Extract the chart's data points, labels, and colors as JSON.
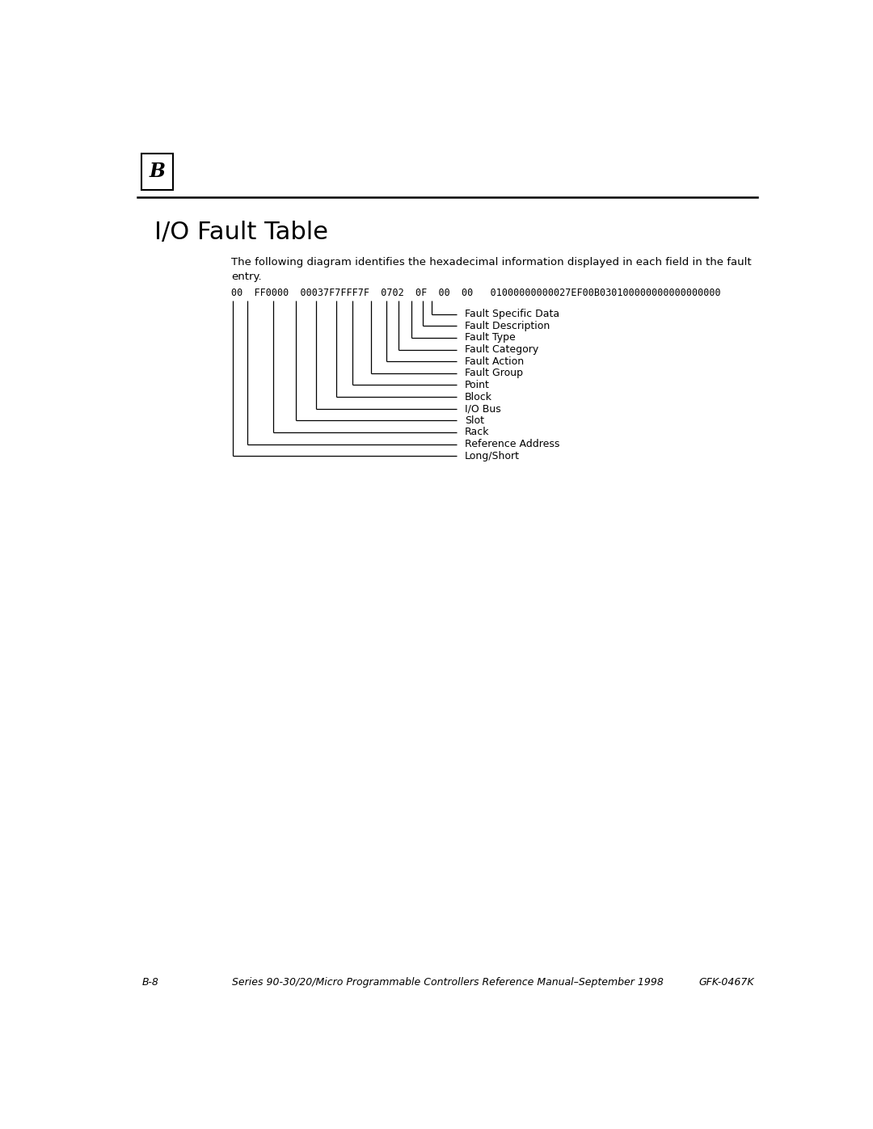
{
  "page_title": "I/O Fault Table",
  "chapter_letter": "B",
  "description_line1": "The following diagram identifies the hexadecimal information displayed in each field in the fault",
  "description_line2": "entry.",
  "hex_string": "00  FF0000  00037F7FFF7F  0702  0F  00  00   01000000000027EF00B030100000000000000000",
  "labels": [
    "Fault Specific Data",
    "Fault Description",
    "Fault Type",
    "Fault Category",
    "Fault Action",
    "Fault Group",
    "Point",
    "Block",
    "I/O Bus",
    "Slot",
    "Rack",
    "Reference Address",
    "Long/Short"
  ],
  "footer_left": "B-8",
  "footer_center": "Series 90-30/20/Micro Programmable Controllers Reference Manual–September 1998",
  "footer_right": "GFK-0467K",
  "bg_color": "#ffffff",
  "text_color": "#000000",
  "line_color": "#000000",
  "title_fontsize": 22,
  "body_fontsize": 9.5,
  "label_fontsize": 9,
  "footer_fontsize": 9
}
